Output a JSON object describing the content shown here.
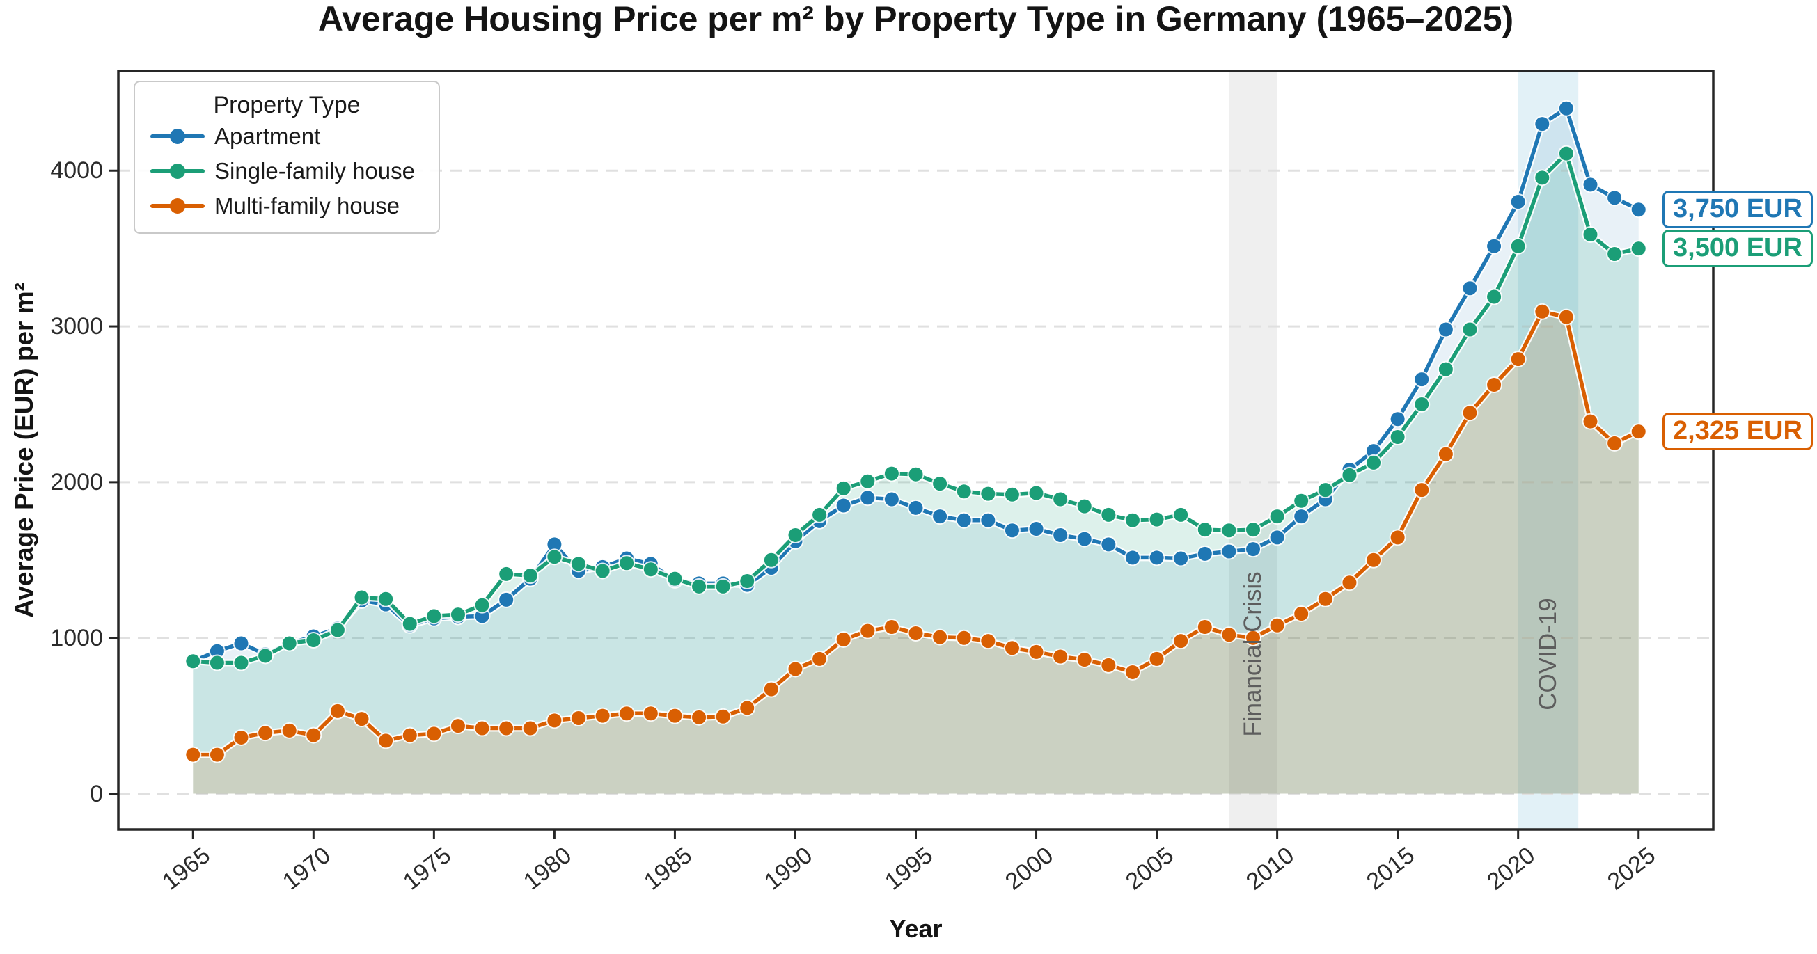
{
  "title": "Average Housing Price per m² by Property Type in Germany (1965–2025)",
  "legend": {
    "title": "Property Type",
    "items": [
      {
        "label": "Apartment",
        "color": "#1f77b4"
      },
      {
        "label": "Single-family house",
        "color": "#1b9e77"
      },
      {
        "label": "Multi-family house",
        "color": "#d95f02"
      }
    ]
  },
  "chart_data": {
    "type": "line",
    "title": "Average Housing Price per m² by Property Type in Germany (1965–2025)",
    "xlabel": "Year",
    "ylabel": "Average Price (EUR) per m²",
    "x": [
      1965,
      1966,
      1967,
      1968,
      1969,
      1970,
      1971,
      1972,
      1973,
      1974,
      1975,
      1976,
      1977,
      1978,
      1979,
      1980,
      1981,
      1982,
      1983,
      1984,
      1985,
      1986,
      1987,
      1988,
      1989,
      1990,
      1991,
      1992,
      1993,
      1994,
      1995,
      1996,
      1997,
      1998,
      1999,
      2000,
      2001,
      2002,
      2003,
      2004,
      2005,
      2006,
      2007,
      2008,
      2009,
      2010,
      2011,
      2012,
      2013,
      2014,
      2015,
      2016,
      2017,
      2018,
      2019,
      2020,
      2021,
      2022,
      2023,
      2024,
      2025
    ],
    "series": [
      {
        "name": "Apartment",
        "color": "#1f77b4",
        "fill_opacity": 0.1,
        "values": [
          850,
          915,
          965,
          895,
          965,
          1010,
          1060,
          1240,
          1215,
          1080,
          1125,
          1135,
          1140,
          1245,
          1380,
          1600,
          1430,
          1455,
          1510,
          1475,
          1370,
          1350,
          1350,
          1340,
          1450,
          1620,
          1750,
          1850,
          1900,
          1890,
          1835,
          1780,
          1755,
          1755,
          1690,
          1700,
          1660,
          1635,
          1600,
          1515,
          1515,
          1510,
          1540,
          1555,
          1570,
          1645,
          1780,
          1890,
          2080,
          2200,
          2405,
          2660,
          2980,
          3245,
          3515,
          3800,
          4300,
          4400,
          3910,
          3825,
          3750
        ]
      },
      {
        "name": "Single-family house",
        "color": "#1b9e77",
        "fill_opacity": 0.15,
        "values": [
          850,
          840,
          840,
          885,
          965,
          985,
          1050,
          1260,
          1250,
          1090,
          1140,
          1150,
          1210,
          1410,
          1400,
          1520,
          1475,
          1430,
          1480,
          1440,
          1380,
          1330,
          1330,
          1365,
          1500,
          1660,
          1790,
          1960,
          2005,
          2055,
          2050,
          1990,
          1940,
          1925,
          1920,
          1930,
          1890,
          1845,
          1790,
          1755,
          1760,
          1790,
          1695,
          1690,
          1695,
          1780,
          1880,
          1950,
          2045,
          2125,
          2290,
          2500,
          2725,
          2980,
          3190,
          3515,
          3955,
          4110,
          3590,
          3465,
          3500
        ]
      },
      {
        "name": "Multi-family house",
        "color": "#d95f02",
        "fill_opacity": 0.15,
        "values": [
          250,
          250,
          360,
          390,
          405,
          375,
          530,
          480,
          340,
          375,
          385,
          435,
          420,
          420,
          420,
          470,
          485,
          500,
          515,
          515,
          500,
          490,
          495,
          550,
          670,
          800,
          865,
          990,
          1045,
          1070,
          1030,
          1005,
          1000,
          980,
          935,
          910,
          880,
          860,
          825,
          780,
          865,
          980,
          1070,
          1020,
          1000,
          1080,
          1155,
          1250,
          1355,
          1500,
          1645,
          1950,
          2180,
          2445,
          2625,
          2790,
          3095,
          3060,
          2390,
          2250,
          2325
        ]
      }
    ],
    "x_ticks": [
      1965,
      1970,
      1975,
      1980,
      1985,
      1990,
      1995,
      2000,
      2005,
      2010,
      2015,
      2020,
      2025
    ],
    "y_ticks": [
      0,
      1000,
      2000,
      3000,
      4000
    ],
    "xlim": [
      1961.9,
      2028.1
    ],
    "ylim": [
      -230,
      4640
    ],
    "grid": "horizontal dashed",
    "legend_position": "upper left",
    "bands": [
      {
        "label": "Financial Crisis",
        "from": 2008,
        "to": 2010,
        "fill": "#999999",
        "fill_opacity": 0.16,
        "label_color": "#5d5d5d"
      },
      {
        "label": "COVID-19",
        "from": 2020,
        "to": 2022.5,
        "fill": "#a8d4e6",
        "fill_opacity": 0.33,
        "label_color": "#5d5d5d"
      }
    ],
    "end_labels": [
      {
        "text": "3,750 EUR",
        "series": "Apartment",
        "value": 3750,
        "color": "#1f77b4"
      },
      {
        "text": "3,500 EUR",
        "series": "Single-family house",
        "value": 3500,
        "color": "#1b9e77"
      },
      {
        "text": "2,325 EUR",
        "series": "Multi-family house",
        "value": 2325,
        "color": "#d95f02"
      }
    ],
    "frame_color": "#262626",
    "grid_color": "#e0e0e0"
  }
}
